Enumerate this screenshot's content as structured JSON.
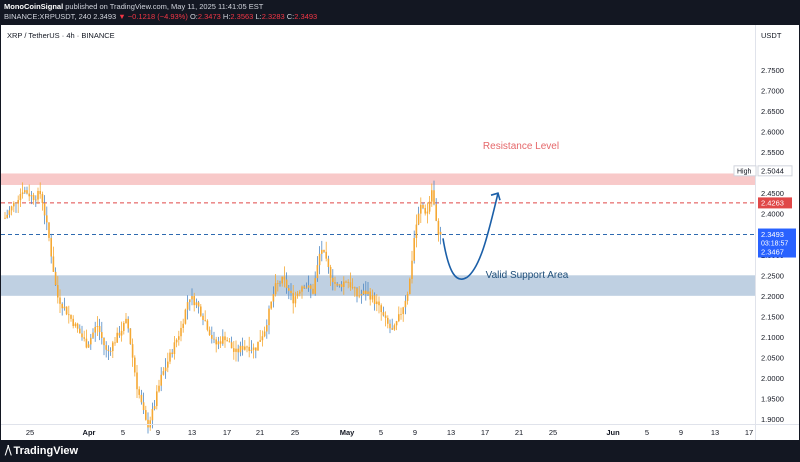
{
  "header": {
    "publisher": "MonoCoinSignal",
    "published_text": "published on TradingView.com, May 11, 2025 11:41:05 EST",
    "symbol": "BINANCE:XRPUSDT, 240",
    "last": "2.3493",
    "change_arrow": "▼",
    "change": "−0.1218 (−4.93%)",
    "o_label": "O:",
    "o_value": "2.3473",
    "h_label": "H:",
    "h_value": "2.3563",
    "l_label": "L:",
    "l_value": "2.3283",
    "c_label": "C:",
    "c_value": "2.3493"
  },
  "chart_title": "XRP / TetherUS · 4h · BINANCE",
  "price_axis": {
    "currency": "USDT",
    "ticks": [
      "2.7500",
      "2.7000",
      "2.6500",
      "2.6000",
      "2.5500",
      "2.5000",
      "2.4500",
      "2.4000",
      "2.3500",
      "2.3000",
      "2.2500",
      "2.2000",
      "2.1500",
      "2.1000",
      "2.0500",
      "2.0000",
      "1.9500",
      "1.9000"
    ],
    "high_label": "High",
    "high_value": "2.5044",
    "resistance_line_value": "2.4263",
    "current_price": "2.3493",
    "countdown": "03:18:57",
    "below_price": "2.3467"
  },
  "time_axis": {
    "labels": [
      {
        "text": "25",
        "bold": false
      },
      {
        "text": "Apr",
        "bold": true
      },
      {
        "text": "5",
        "bold": false
      },
      {
        "text": "9",
        "bold": false
      },
      {
        "text": "13",
        "bold": false
      },
      {
        "text": "17",
        "bold": false
      },
      {
        "text": "21",
        "bold": false
      },
      {
        "text": "25",
        "bold": false
      },
      {
        "text": "May",
        "bold": true
      },
      {
        "text": "5",
        "bold": false
      },
      {
        "text": "9",
        "bold": false
      },
      {
        "text": "13",
        "bold": false
      },
      {
        "text": "17",
        "bold": false
      },
      {
        "text": "21",
        "bold": false
      },
      {
        "text": "25",
        "bold": false
      },
      {
        "text": "Jun",
        "bold": true
      },
      {
        "text": "5",
        "bold": false
      },
      {
        "text": "9",
        "bold": false
      },
      {
        "text": "13",
        "bold": false
      },
      {
        "text": "17",
        "bold": false
      }
    ]
  },
  "annotations": {
    "resistance": "Resistance Level",
    "support": "Valid Support Area"
  },
  "zones": {
    "resistance": {
      "from": 2.47,
      "to": 2.498
    },
    "support": {
      "from": 2.2,
      "to": 2.25
    }
  },
  "colors": {
    "resistance_zone": "#f8c9c9",
    "support_zone": "#bfd0e2",
    "resistance_text": "#e5676a",
    "support_text": "#1e4e79",
    "candle": "#f5a833",
    "candle_wick": "#4f89c5",
    "projection": "#1b5fa8",
    "dashed_red": "#e04848",
    "dashed_blue": "#2e6ab0"
  },
  "footer": {
    "brand": "TradingView"
  }
}
